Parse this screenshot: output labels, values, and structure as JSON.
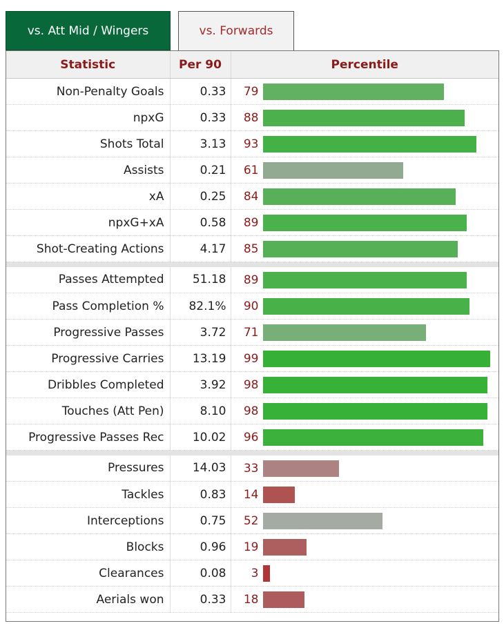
{
  "tabs": [
    {
      "label": "vs. Att Mid / Wingers",
      "active": true
    },
    {
      "label": "vs. Forwards",
      "active": false
    }
  ],
  "table": {
    "headers": {
      "statistic": "Statistic",
      "per90": "Per 90",
      "percentile": "Percentile"
    },
    "groups": [
      [
        {
          "stat": "Non-Penalty Goals",
          "per90": "0.33",
          "percentile": 79,
          "color": "#62b062"
        },
        {
          "stat": "npxG",
          "per90": "0.33",
          "percentile": 88,
          "color": "#4cb14c"
        },
        {
          "stat": "Shots Total",
          "per90": "3.13",
          "percentile": 93,
          "color": "#43b143"
        },
        {
          "stat": "Assists",
          "per90": "0.21",
          "percentile": 61,
          "color": "#92a992"
        },
        {
          "stat": "xA",
          "per90": "0.25",
          "percentile": 84,
          "color": "#58b158"
        },
        {
          "stat": "npxG+xA",
          "per90": "0.58",
          "percentile": 89,
          "color": "#4bb14b"
        },
        {
          "stat": "Shot-Creating Actions",
          "per90": "4.17",
          "percentile": 85,
          "color": "#56b156"
        }
      ],
      [
        {
          "stat": "Passes Attempted",
          "per90": "51.18",
          "percentile": 89,
          "color": "#4bb14b"
        },
        {
          "stat": "Pass Completion %",
          "per90": "82.1%",
          "percentile": 90,
          "color": "#48b148"
        },
        {
          "stat": "Progressive Passes",
          "per90": "3.72",
          "percentile": 71,
          "color": "#78ae78"
        },
        {
          "stat": "Progressive Carries",
          "per90": "13.19",
          "percentile": 99,
          "color": "#36b136"
        },
        {
          "stat": "Dribbles Completed",
          "per90": "3.92",
          "percentile": 98,
          "color": "#38b138"
        },
        {
          "stat": "Touches (Att Pen)",
          "per90": "8.10",
          "percentile": 98,
          "color": "#38b138"
        },
        {
          "stat": "Progressive Passes Rec",
          "per90": "10.02",
          "percentile": 96,
          "color": "#3cb13c"
        }
      ],
      [
        {
          "stat": "Pressures",
          "per90": "14.03",
          "percentile": 33,
          "color": "#ad8282"
        },
        {
          "stat": "Tackles",
          "per90": "0.83",
          "percentile": 14,
          "color": "#ae5252"
        },
        {
          "stat": "Interceptions",
          "per90": "0.75",
          "percentile": 52,
          "color": "#a3aba3"
        },
        {
          "stat": "Blocks",
          "per90": "0.96",
          "percentile": 19,
          "color": "#ad5e5e"
        },
        {
          "stat": "Clearances",
          "per90": "0.08",
          "percentile": 3,
          "color": "#b03636"
        },
        {
          "stat": "Aerials won",
          "per90": "0.33",
          "percentile": 18,
          "color": "#ad5b5b"
        }
      ]
    ]
  }
}
